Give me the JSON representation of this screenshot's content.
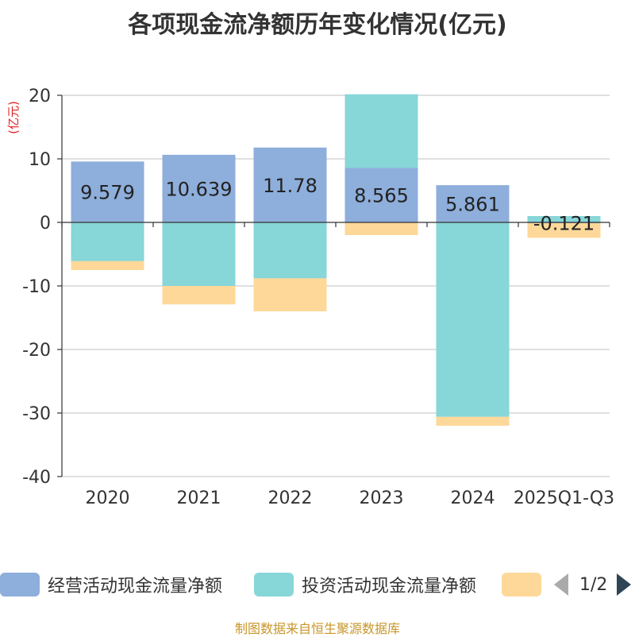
{
  "chart_data": {
    "type": "bar",
    "stacked": true,
    "title": "各项现金流净额历年变化情况(亿元)",
    "ylabel": "(亿元)",
    "xlabel": "",
    "ylim": [
      -40,
      20
    ],
    "yticks": [
      20,
      10,
      0,
      -10,
      -20,
      -30,
      -40
    ],
    "categories": [
      "2020",
      "2021",
      "2022",
      "2023",
      "2024",
      "2025Q1-Q3"
    ],
    "series": [
      {
        "name": "经营活动现金流量净额",
        "color": "#8eaedb",
        "values": [
          9.579,
          10.639,
          11.78,
          8.565,
          5.861,
          -0.121
        ]
      },
      {
        "name": "投资活动现金流量净额",
        "color": "#87d6d8",
        "values": [
          -6.1,
          -10.0,
          -8.8,
          11.6,
          -30.6,
          1.0
        ]
      },
      {
        "name": "",
        "color": "#fdd899",
        "values": [
          -1.4,
          -2.9,
          -5.2,
          -2.0,
          -1.4,
          -2.3
        ]
      }
    ],
    "data_labels": [
      "9.579",
      "10.639",
      "11.78",
      "8.565",
      "5.861",
      "-0.121"
    ],
    "legend_position": "bottom"
  },
  "legend": {
    "page_text": "1/2"
  },
  "source": "制图数据来自恒生聚源数据库"
}
